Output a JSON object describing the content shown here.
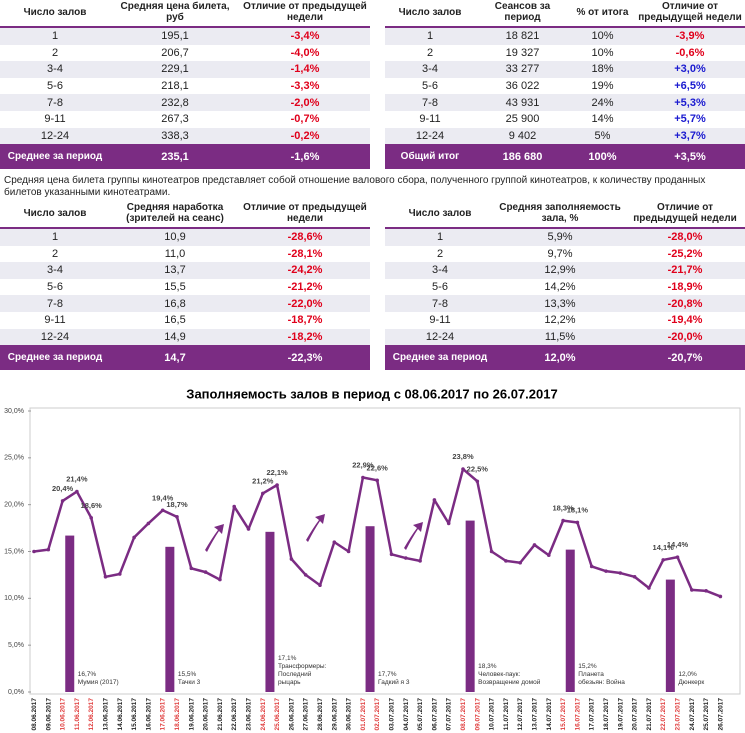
{
  "tables": [
    {
      "header": [
        "Число залов",
        "Средняя цена билета, руб",
        "Отличие от предыдущей недели"
      ],
      "rows": [
        [
          "1",
          "195,1",
          "-3,4%"
        ],
        [
          "2",
          "206,7",
          "-4,0%"
        ],
        [
          "3-4",
          "229,1",
          "-1,4%"
        ],
        [
          "5-6",
          "218,1",
          "-3,3%"
        ],
        [
          "7-8",
          "232,8",
          "-2,0%"
        ],
        [
          "9-11",
          "267,3",
          "-0,7%"
        ],
        [
          "12-24",
          "338,3",
          "-0,2%"
        ]
      ],
      "footer": [
        "Среднее за период",
        "235,1",
        "-1,6%"
      ]
    },
    {
      "header": [
        "Число залов",
        "Сеансов за период",
        "% от итога",
        "Отличие от предыдущей недели"
      ],
      "rows": [
        [
          "1",
          "18 821",
          "10%",
          "-3,9%"
        ],
        [
          "2",
          "19 327",
          "10%",
          "-0,6%"
        ],
        [
          "3-4",
          "33 277",
          "18%",
          "+3,0%"
        ],
        [
          "5-6",
          "36 022",
          "19%",
          "+6,5%"
        ],
        [
          "7-8",
          "43 931",
          "24%",
          "+5,3%"
        ],
        [
          "9-11",
          "25 900",
          "14%",
          "+5,7%"
        ],
        [
          "12-24",
          "9 402",
          "5%",
          "+3,7%"
        ]
      ],
      "footer": [
        "Общий итог",
        "186 680",
        "100%",
        "+3,5%"
      ]
    },
    {
      "header": [
        "Число залов",
        "Средняя наработка (зрителей на сеанс)",
        "Отличие от предыдущей недели"
      ],
      "rows": [
        [
          "1",
          "10,9",
          "-28,6%"
        ],
        [
          "2",
          "11,0",
          "-28,1%"
        ],
        [
          "3-4",
          "13,7",
          "-24,2%"
        ],
        [
          "5-6",
          "15,5",
          "-21,2%"
        ],
        [
          "7-8",
          "16,8",
          "-22,0%"
        ],
        [
          "9-11",
          "16,5",
          "-18,7%"
        ],
        [
          "12-24",
          "14,9",
          "-18,2%"
        ]
      ],
      "footer": [
        "Среднее за период",
        "14,7",
        "-22,3%"
      ]
    },
    {
      "header": [
        "Число залов",
        "Средняя заполняемость зала, %",
        "Отличие от предыдущей недели"
      ],
      "rows": [
        [
          "1",
          "5,9%",
          "-28,0%"
        ],
        [
          "2",
          "9,7%",
          "-25,2%"
        ],
        [
          "3-4",
          "12,9%",
          "-21,7%"
        ],
        [
          "5-6",
          "14,2%",
          "-18,9%"
        ],
        [
          "7-8",
          "13,3%",
          "-20,8%"
        ],
        [
          "9-11",
          "12,2%",
          "-19,4%"
        ],
        [
          "12-24",
          "11,5%",
          "-20,0%"
        ]
      ],
      "footer": [
        "Среднее за период",
        "12,0%",
        "-20,7%"
      ]
    }
  ],
  "note": "Средняя цена билета группы кинотеатров представляет собой отношение валового сбора, полученного группой кинотеатров, к количеству проданных билетов указанными кинотеатрами.",
  "chart_data": {
    "type": "line",
    "title": "Заполняемость залов в период с 08.06.2017 по 26.07.2017",
    "categories": [
      "08.06.2017",
      "09.06.2017",
      "10.06.2017",
      "11.06.2017",
      "12.06.2017",
      "13.06.2017",
      "14.06.2017",
      "15.06.2017",
      "16.06.2017",
      "17.06.2017",
      "18.06.2017",
      "19.06.2017",
      "20.06.2017",
      "21.06.2017",
      "22.06.2017",
      "23.06.2017",
      "24.06.2017",
      "25.06.2017",
      "26.06.2017",
      "27.06.2017",
      "28.06.2017",
      "29.06.2017",
      "30.06.2017",
      "01.07.2017",
      "02.07.2017",
      "03.07.2017",
      "04.07.2017",
      "05.07.2017",
      "06.07.2017",
      "07.07.2017",
      "08.07.2017",
      "09.07.2017",
      "10.07.2017",
      "11.07.2017",
      "12.07.2017",
      "13.07.2017",
      "14.07.2017",
      "15.07.2017",
      "16.07.2017",
      "17.07.2017",
      "18.07.2017",
      "19.07.2017",
      "20.07.2017",
      "21.07.2017",
      "22.07.2017",
      "23.07.2017",
      "24.07.2017",
      "25.07.2017",
      "26.07.2017"
    ],
    "category_colors": [
      "#222",
      "#222",
      "#e03c3c",
      "#e03c3c",
      "#e03c3c",
      "#222",
      "#222",
      "#222",
      "#222",
      "#e03c3c",
      "#e03c3c",
      "#222",
      "#222",
      "#222",
      "#222",
      "#222",
      "#e03c3c",
      "#e03c3c",
      "#222",
      "#222",
      "#222",
      "#222",
      "#222",
      "#e03c3c",
      "#e03c3c",
      "#222",
      "#222",
      "#222",
      "#222",
      "#222",
      "#e03c3c",
      "#e03c3c",
      "#222",
      "#222",
      "#222",
      "#222",
      "#222",
      "#e03c3c",
      "#e03c3c",
      "#222",
      "#222",
      "#222",
      "#222",
      "#222",
      "#e03c3c",
      "#e03c3c",
      "#222",
      "#222",
      "#222"
    ],
    "series": [
      {
        "type": "line",
        "color": "#7b2c83",
        "values": [
          15.0,
          15.2,
          20.4,
          21.4,
          18.6,
          12.3,
          12.6,
          16.5,
          18.0,
          19.4,
          18.7,
          13.2,
          12.8,
          12.0,
          19.8,
          17.4,
          21.2,
          22.1,
          14.2,
          12.5,
          11.4,
          16.0,
          15.0,
          22.9,
          22.6,
          14.7,
          14.3,
          14.0,
          20.5,
          18.0,
          23.8,
          22.5,
          15.0,
          14.0,
          13.8,
          15.7,
          14.6,
          18.3,
          18.1,
          13.4,
          12.9,
          12.7,
          12.3,
          11.1,
          14.1,
          14.4,
          10.9,
          10.8,
          10.2
        ],
        "value_labels": [
          null,
          null,
          "20,4%",
          "21,4%",
          "18,6%",
          null,
          null,
          null,
          null,
          "19,4%",
          "18,7%",
          null,
          null,
          null,
          null,
          null,
          "21,2%",
          "22,1%",
          null,
          null,
          null,
          null,
          null,
          "22,9%",
          "22,6%",
          null,
          null,
          null,
          null,
          null,
          "23,8%",
          "22,5%",
          null,
          null,
          null,
          null,
          null,
          "18,3%",
          "18,1%",
          null,
          null,
          null,
          null,
          null,
          "14,1%",
          "14,4%",
          null,
          null,
          null
        ]
      },
      {
        "type": "bar",
        "color": "#7b2c83",
        "values": [
          null,
          null,
          16.7,
          null,
          null,
          null,
          null,
          null,
          null,
          15.5,
          null,
          null,
          null,
          null,
          null,
          null,
          17.1,
          null,
          null,
          null,
          null,
          null,
          null,
          17.7,
          null,
          null,
          null,
          null,
          null,
          null,
          18.3,
          null,
          null,
          null,
          null,
          null,
          null,
          15.2,
          null,
          null,
          null,
          null,
          null,
          null,
          12.0,
          null,
          null,
          null,
          null
        ],
        "value_labels": [
          null,
          null,
          "16,7%",
          null,
          null,
          null,
          null,
          null,
          null,
          "15,5%",
          null,
          null,
          null,
          null,
          null,
          null,
          "17,1%",
          null,
          null,
          null,
          null,
          null,
          null,
          "17,7%",
          null,
          null,
          null,
          null,
          null,
          null,
          "18,3%",
          null,
          null,
          null,
          null,
          null,
          null,
          "15,2%",
          null,
          null,
          null,
          null,
          null,
          null,
          "12,0%",
          null,
          null,
          null,
          null
        ],
        "annotations": [
          null,
          null,
          "Мумия (2017)",
          null,
          null,
          null,
          null,
          null,
          null,
          "Тачки 3",
          null,
          null,
          null,
          null,
          null,
          null,
          "Трансформеры:\nПоследний\nрыцарь",
          null,
          null,
          null,
          null,
          null,
          null,
          "Гадкий я 3",
          null,
          null,
          null,
          null,
          null,
          null,
          "Человек-паук:\nВозвращение домой",
          null,
          null,
          null,
          null,
          null,
          null,
          "Планета\nобезьян: Война",
          null,
          null,
          null,
          null,
          null,
          null,
          "Дюнкерк",
          null,
          null,
          null,
          null
        ]
      }
    ],
    "ylim": [
      0,
      30
    ],
    "yticks": [
      {
        "value": 0,
        "label": "0,0%"
      },
      {
        "value": 5,
        "label": "5,0%"
      },
      {
        "value": 10,
        "label": "10,0%"
      },
      {
        "value": 15,
        "label": "15,0%"
      },
      {
        "value": 20,
        "label": "20,0%"
      },
      {
        "value": 25,
        "label": "25,0%"
      },
      {
        "value": 30,
        "label": "30,0%"
      }
    ],
    "grid": false
  }
}
